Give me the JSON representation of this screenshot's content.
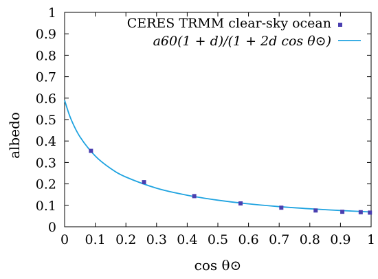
{
  "chart_data": {
    "type": "scatter",
    "xlabel": "cos θ⊙",
    "ylabel": "albedo",
    "xlim": [
      0,
      1
    ],
    "ylim": [
      0,
      1
    ],
    "x_ticks": [
      "0",
      "0.1",
      "0.2",
      "0.3",
      "0.4",
      "0.5",
      "0.6",
      "0.7",
      "0.8",
      "0.9",
      "1"
    ],
    "y_ticks": [
      "0",
      "0.1",
      "0.2",
      "0.3",
      "0.4",
      "0.5",
      "0.6",
      "0.7",
      "0.8",
      "0.9",
      "1"
    ],
    "grid": false,
    "legend_position": "top-right",
    "colors": {
      "points": "#4a3fb0",
      "curve": "#1fa3e0",
      "axis": "#000000"
    },
    "series": [
      {
        "name": "CERES TRMM clear-sky ocean",
        "kind": "points",
        "x": [
          0.086,
          0.259,
          0.423,
          0.574,
          0.707,
          0.819,
          0.906,
          0.966,
          0.996
        ],
        "y": [
          0.354,
          0.208,
          0.143,
          0.109,
          0.089,
          0.076,
          0.07,
          0.068,
          0.066
        ]
      },
      {
        "name": "a60(1 + d)/(1 + 2d cos θ⊙)",
        "kind": "curve",
        "x": [
          0,
          0.02,
          0.05,
          0.1,
          0.15,
          0.2,
          0.3,
          0.4,
          0.5,
          0.6,
          0.7,
          0.8,
          0.9,
          1.0
        ],
        "y": [
          0.59,
          0.505,
          0.42,
          0.33,
          0.272,
          0.232,
          0.18,
          0.147,
          0.124,
          0.107,
          0.094,
          0.084,
          0.076,
          0.069
        ]
      }
    ],
    "legend": {
      "points_label": "CERES TRMM clear-sky ocean",
      "curve_label": "a60(1 + d)/(1 + 2d cos θ⊙)"
    }
  }
}
